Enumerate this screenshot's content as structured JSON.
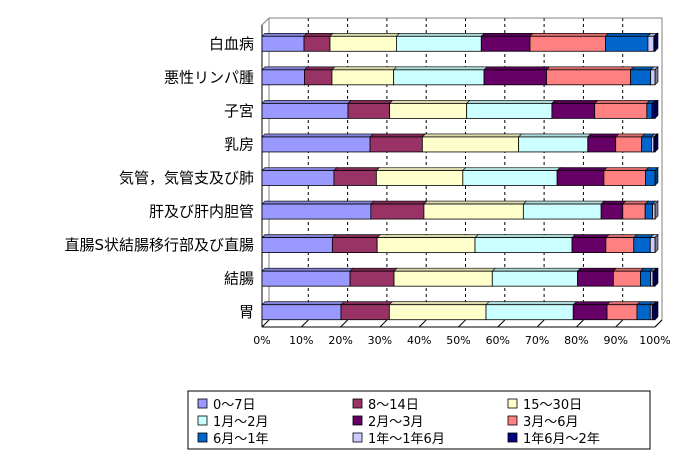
{
  "chart_data": {
    "type": "bar",
    "orientation": "horizontal",
    "stacked": "percent",
    "title": "",
    "xlabel": "",
    "ylabel": "",
    "xlim": [
      0,
      100
    ],
    "grid": "vertical dashed",
    "legend_position": "bottom",
    "x_tick_labels": [
      "0%",
      "10%",
      "20%",
      "30%",
      "40%",
      "50%",
      "60%",
      "70%",
      "80%",
      "90%",
      "100%"
    ],
    "categories": [
      "白血病",
      "悪性リンパ腫",
      "子宮",
      "乳房",
      "気管，気管支及び肺",
      "肝及び肝内胆管",
      "直腸S状結腸移行部及び直腸",
      "結腸",
      "胃"
    ],
    "series": [
      {
        "name": "0〜7日",
        "color": "#9999ff",
        "values": [
          10.7,
          10.8,
          22.1,
          27.5,
          18.3,
          27.7,
          17.9,
          22.4,
          20.1
        ]
      },
      {
        "name": "8〜14日",
        "color": "#993366",
        "values": [
          6.6,
          7.0,
          10.7,
          13.3,
          10.8,
          13.5,
          11.4,
          11.2,
          12.3
        ]
      },
      {
        "name": "15〜30日",
        "color": "#ffffcc",
        "values": [
          16.9,
          15.7,
          19.8,
          24.5,
          22.0,
          25.3,
          24.9,
          25.0,
          24.6
        ]
      },
      {
        "name": "1月〜2月",
        "color": "#ccffff",
        "values": [
          21.6,
          23.0,
          21.9,
          17.6,
          24.0,
          19.8,
          24.7,
          21.7,
          22.2
        ]
      },
      {
        "name": "2月〜3月",
        "color": "#660066",
        "values": [
          12.4,
          15.9,
          11.0,
          7.1,
          11.9,
          5.5,
          8.6,
          9.1,
          8.6
        ]
      },
      {
        "name": "3月〜6月",
        "color": "#ff8080",
        "values": [
          19.2,
          21.4,
          13.4,
          6.6,
          10.6,
          5.7,
          7.1,
          6.9,
          7.6
        ]
      },
      {
        "name": "6月〜1年",
        "color": "#0066cc",
        "values": [
          10.8,
          5.1,
          1.3,
          2.5,
          2.4,
          1.9,
          4.2,
          2.6,
          3.4
        ]
      },
      {
        "name": "1年〜1年6月",
        "color": "#ccccff",
        "values": [
          1.5,
          1.1,
          0.0,
          0.6,
          0.0,
          0.6,
          1.2,
          0.6,
          0.5
        ]
      },
      {
        "name": "1年6月〜2年",
        "color": "#000080",
        "values": [
          0.3,
          0.0,
          0.8,
          0.3,
          0.0,
          0.0,
          0.0,
          0.5,
          0.7
        ]
      }
    ]
  }
}
